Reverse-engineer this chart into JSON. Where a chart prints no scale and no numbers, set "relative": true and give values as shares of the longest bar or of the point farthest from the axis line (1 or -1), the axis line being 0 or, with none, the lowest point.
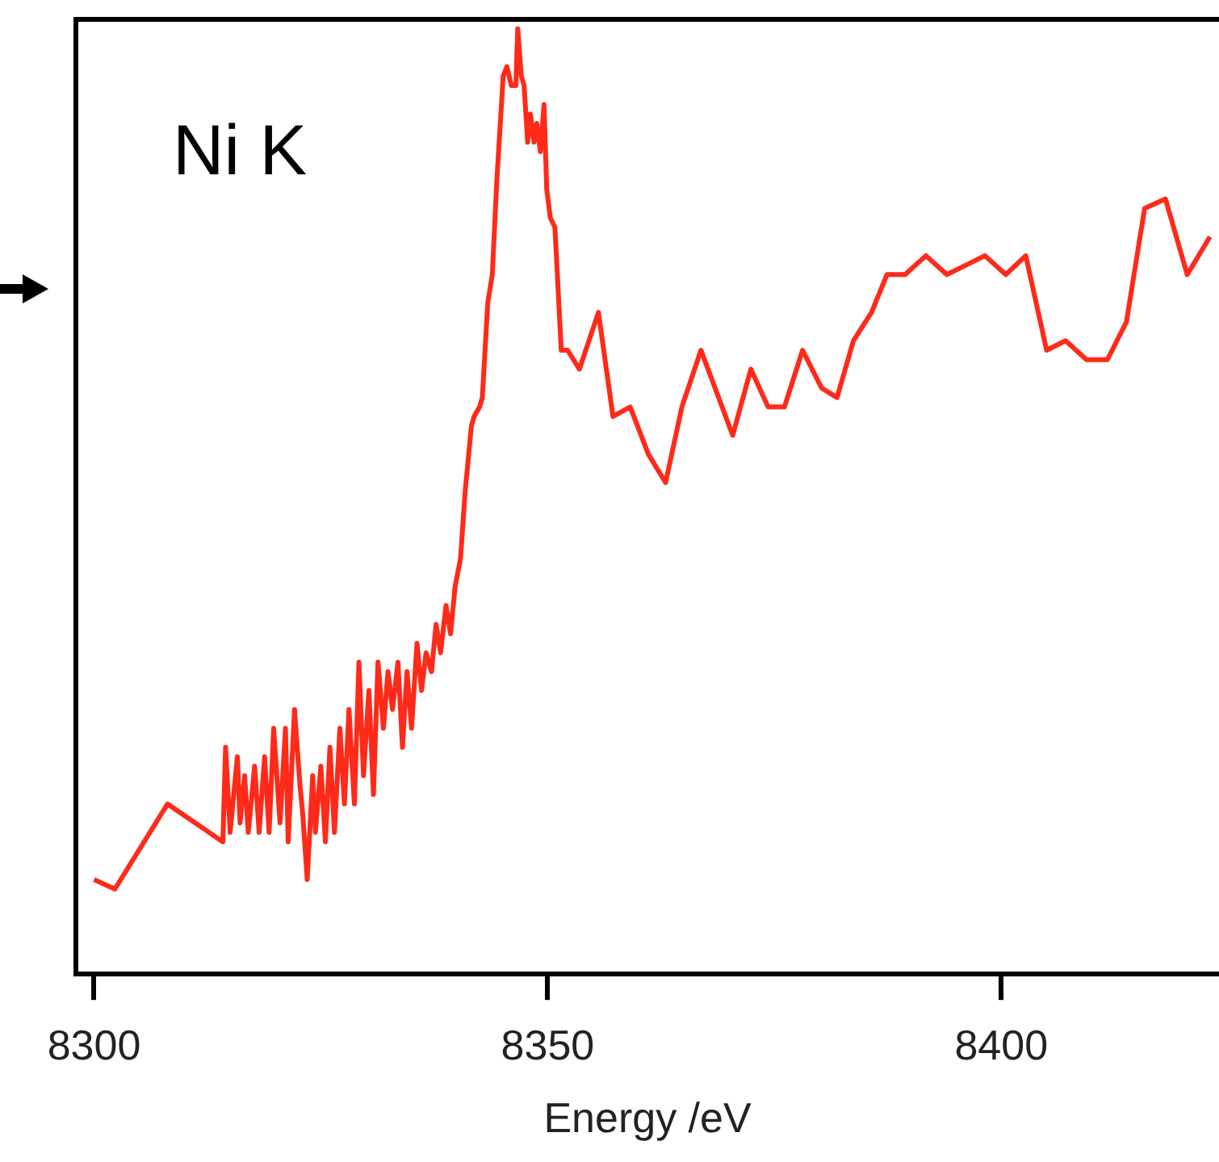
{
  "chart_data": {
    "type": "line",
    "relative": true,
    "xlabel": "Energy /eV",
    "annotations": [
      "Ni K"
    ],
    "color": "#ff2a1a",
    "xlim": [
      8298,
      8424
    ],
    "xticks": [
      8300,
      8350,
      8400
    ],
    "grid": false,
    "x": [
      8300.0,
      8302.3,
      8308.1,
      8314.2,
      8314.5,
      8315.0,
      8315.8,
      8316.1,
      8316.6,
      8317.0,
      8317.7,
      8318.2,
      8318.8,
      8319.3,
      8319.8,
      8320.5,
      8321.1,
      8321.4,
      8322.1,
      8322.7,
      8323.0,
      8323.5,
      8324.1,
      8324.4,
      8325.0,
      8325.5,
      8326.0,
      8326.5,
      8327.1,
      8327.6,
      8328.1,
      8328.7,
      8329.2,
      8329.7,
      8330.3,
      8330.8,
      8331.3,
      8331.9,
      8332.4,
      8332.9,
      8333.5,
      8334.0,
      8334.5,
      8335.0,
      8335.6,
      8336.1,
      8336.6,
      8337.2,
      8337.7,
      8338.2,
      8338.8,
      8339.3,
      8339.8,
      8340.4,
      8340.9,
      8341.2,
      8341.6,
      8341.9,
      8342.5,
      8342.8,
      8343.4,
      8343.9,
      8344.4,
      8345.1,
      8345.5,
      8346.0,
      8346.5,
      8346.7,
      8347.1,
      8347.4,
      8347.8,
      8348.1,
      8348.5,
      8348.8,
      8349.2,
      8349.6,
      8349.9,
      8350.3,
      8350.8,
      8351.5,
      8352.2,
      8353.5,
      8355.6,
      8357.2,
      8359.1,
      8361.1,
      8363.0,
      8364.8,
      8366.9,
      8370.4,
      8372.4,
      8374.3,
      8376.1,
      8378.1,
      8380.2,
      8381.9,
      8383.7,
      8385.7,
      8387.4,
      8389.4,
      8391.7,
      8394.0,
      8396.1,
      8398.2,
      8400.5,
      8402.7,
      8405.0,
      8407.1,
      8409.4,
      8411.7,
      8413.8,
      8415.8,
      8418.1,
      8420.5,
      8423.0
    ],
    "values": [
      0.1,
      0.09,
      0.18,
      0.14,
      0.24,
      0.15,
      0.23,
      0.16,
      0.21,
      0.15,
      0.22,
      0.15,
      0.23,
      0.15,
      0.26,
      0.16,
      0.26,
      0.14,
      0.28,
      0.2,
      0.17,
      0.1,
      0.21,
      0.15,
      0.22,
      0.14,
      0.24,
      0.15,
      0.26,
      0.18,
      0.28,
      0.18,
      0.33,
      0.21,
      0.3,
      0.19,
      0.33,
      0.26,
      0.32,
      0.28,
      0.33,
      0.24,
      0.32,
      0.26,
      0.35,
      0.3,
      0.34,
      0.32,
      0.37,
      0.34,
      0.39,
      0.36,
      0.41,
      0.44,
      0.51,
      0.54,
      0.58,
      0.59,
      0.6,
      0.61,
      0.71,
      0.74,
      0.84,
      0.95,
      0.96,
      0.94,
      0.94,
      1,
      0.95,
      0.94,
      0.88,
      0.91,
      0.88,
      0.9,
      0.87,
      0.92,
      0.83,
      0.8,
      0.79,
      0.66,
      0.66,
      0.64,
      0.7,
      0.59,
      0.6,
      0.55,
      0.52,
      0.6,
      0.66,
      0.57,
      0.64,
      0.6,
      0.6,
      0.66,
      0.62,
      0.61,
      0.67,
      0.7,
      0.74,
      0.74,
      0.76,
      0.74,
      0.75,
      0.76,
      0.74,
      0.76,
      0.66,
      0.67,
      0.65,
      0.65,
      0.69,
      0.81,
      0.82,
      0.74,
      0.78
    ]
  }
}
